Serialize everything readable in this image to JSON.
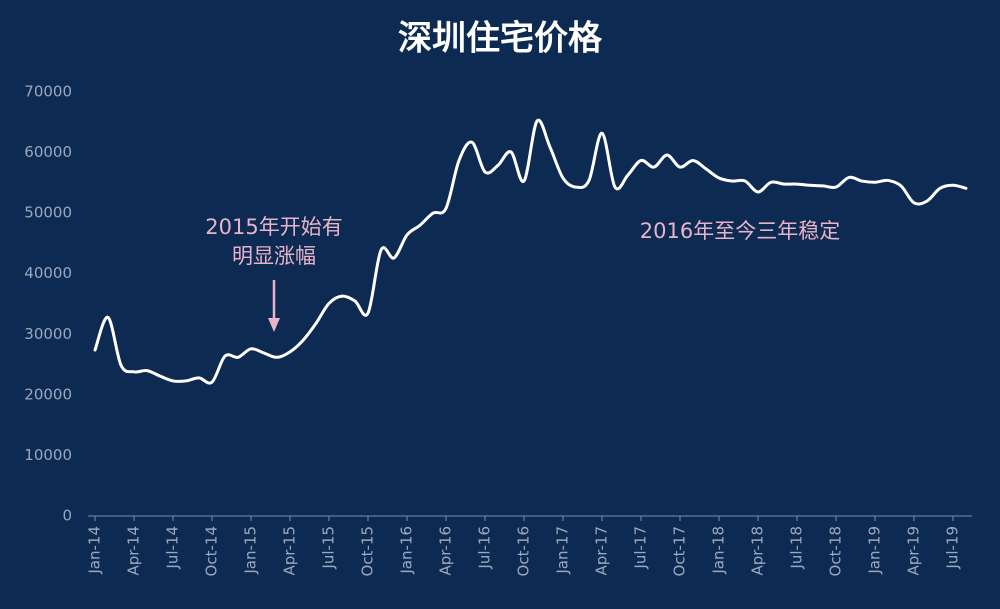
{
  "chart_data": {
    "type": "line",
    "title": "深圳住宅价格",
    "categories": [
      "Jan-14",
      null,
      null,
      "Apr-14",
      null,
      null,
      "Jul-14",
      null,
      null,
      "Oct-14",
      null,
      null,
      "Jan-15",
      null,
      null,
      "Apr-15",
      null,
      null,
      "Jul-15",
      null,
      null,
      "Oct-15",
      null,
      null,
      "Jan-16",
      null,
      null,
      "Apr-16",
      null,
      null,
      "Jul-16",
      null,
      null,
      "Oct-16",
      null,
      null,
      "Jan-17",
      null,
      null,
      "Apr-17",
      null,
      null,
      "Jul-17",
      null,
      null,
      "Oct-17",
      null,
      null,
      "Jan-18",
      null,
      null,
      "Apr-18",
      null,
      null,
      "Jul-18",
      null,
      null,
      "Oct-18",
      null,
      null,
      "Jan-19",
      null,
      null,
      "Apr-19",
      null,
      null,
      "Jul-19",
      null
    ],
    "values": [
      27400,
      32800,
      24900,
      23800,
      24000,
      23100,
      22300,
      22300,
      22800,
      22100,
      26400,
      26200,
      27600,
      26900,
      26200,
      27100,
      29000,
      31800,
      35100,
      36300,
      35500,
      33500,
      43900,
      42600,
      46400,
      48000,
      50000,
      50800,
      58700,
      61700,
      56800,
      57900,
      60100,
      55300,
      65200,
      60900,
      55800,
      54300,
      55400,
      63200,
      54300,
      56300,
      58700,
      57600,
      59600,
      57600,
      58700,
      57300,
      55800,
      55300,
      55300,
      53500,
      55100,
      54800,
      54800,
      54600,
      54500,
      54300,
      55900,
      55300,
      55100,
      55400,
      54500,
      51700,
      52000,
      54100,
      54600,
      54100
    ],
    "color": "#ffffff",
    "ylim": [
      0,
      70000
    ],
    "yticks": [
      0,
      10000,
      20000,
      30000,
      40000,
      50000,
      60000,
      70000
    ],
    "grid": false,
    "annotations": [
      {
        "lines": [
          "2015年开始有",
          "明显涨幅"
        ],
        "arrow": true
      },
      {
        "lines": [
          "2016年至今三年稳定"
        ],
        "arrow": false
      }
    ]
  }
}
